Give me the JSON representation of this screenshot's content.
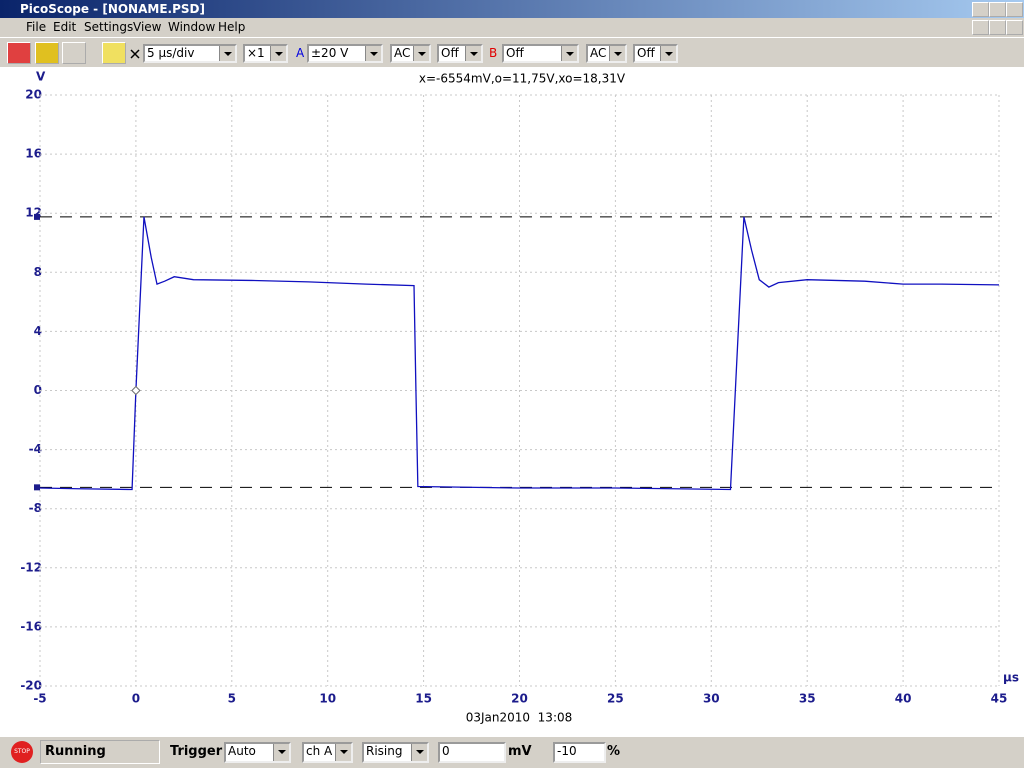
{
  "window": {
    "title": "PicoScope - [NONAME.PSD]",
    "menu": [
      "File",
      "Edit",
      "Settings",
      "View",
      "Window",
      "Help"
    ]
  },
  "toolbar": {
    "timebase": "5 µs/div",
    "multiplier": "×1",
    "channel_a": {
      "label": "A",
      "range": "±20 V",
      "coupling": "AC",
      "filter": "Off"
    },
    "channel_b": {
      "label": "B",
      "range": "Off",
      "coupling": "AC",
      "filter": "Off"
    }
  },
  "chart_data": {
    "type": "line",
    "readout": "x=-6554mV,o=11,75V,xo=18,31V",
    "timestamp": "03Jan2010  13:08",
    "x_label": "µs",
    "y_label": "V",
    "x": [
      -5,
      -3,
      -0.2,
      0,
      0.42,
      0.8,
      1.1,
      1.5,
      2.0,
      3,
      6,
      9,
      12,
      14.5,
      14.6,
      14.7,
      20,
      25,
      31.0,
      31.7,
      32.1,
      32.5,
      33,
      33.5,
      35,
      38,
      40,
      42,
      45
    ],
    "values": [
      -6.6,
      -6.65,
      -6.7,
      0,
      11.75,
      9,
      7.2,
      7.4,
      7.7,
      7.5,
      7.45,
      7.35,
      7.2,
      7.1,
      0,
      -6.5,
      -6.6,
      -6.6,
      -6.7,
      11.75,
      9.5,
      7.5,
      7.0,
      7.3,
      7.5,
      7.4,
      7.2,
      7.2,
      7.15
    ],
    "color": "#1010c0",
    "cursor_lines": [
      11.75,
      -6.554
    ],
    "xlim": [
      -5,
      45
    ],
    "xticks": [
      -5,
      0,
      5,
      10,
      15,
      20,
      25,
      30,
      35,
      40,
      45
    ],
    "ylim": [
      -20,
      20
    ],
    "yticks": [
      20,
      16,
      12,
      8,
      4,
      0,
      -4,
      -8,
      -12,
      -16,
      -20
    ],
    "grid": true
  },
  "status_bar": {
    "stop_button": "STOP",
    "state": "Running",
    "trigger_label": "Trigger",
    "trigger_mode": "Auto",
    "trigger_channel": "ch A",
    "trigger_edge": "Rising",
    "trigger_level": "0",
    "trigger_unit": "mV",
    "delay": "-10",
    "delay_unit": "%"
  }
}
